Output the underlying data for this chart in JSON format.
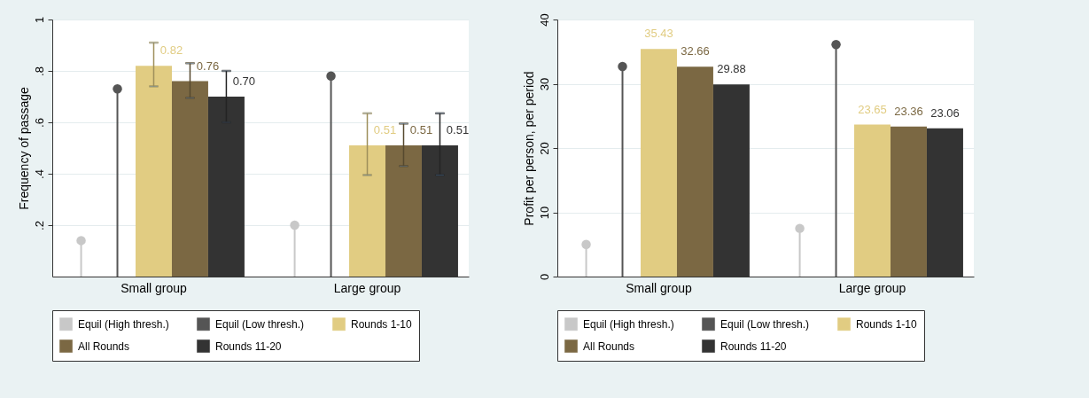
{
  "chart_data": [
    {
      "type": "bar",
      "categories": [
        "Small group",
        "Large group"
      ],
      "ylabel": "Frequency of passage",
      "ylim": [
        0,
        1
      ],
      "yticks": [
        {
          "value": 0.2,
          "label": ".2"
        },
        {
          "value": 0.4,
          "label": ".4"
        },
        {
          "value": 0.6,
          "label": ".6"
        },
        {
          "value": 0.8,
          "label": ".8"
        },
        1
      ],
      "grid": "y",
      "legend": "bottom",
      "series": [
        {
          "name": "Equil (High thresh.)",
          "type": "lollipop",
          "color": "#c8c8c8",
          "values": [
            0.14,
            0.2
          ]
        },
        {
          "name": "Equil (Low thresh.)",
          "type": "lollipop",
          "color": "#555555",
          "values": [
            0.73,
            0.78
          ]
        },
        {
          "name": "Rounds 1-10",
          "color": "#e1cc82",
          "values": [
            0.82,
            0.51
          ],
          "value_labels": [
            "0.82",
            "0.51"
          ],
          "errors": [
            [
              0.74,
              0.91
            ],
            [
              0.395,
              0.635
            ]
          ]
        },
        {
          "name": "All Rounds",
          "color": "#7b6843",
          "values": [
            0.76,
            0.51
          ],
          "value_labels": [
            "0.76",
            "0.51"
          ],
          "errors": [
            [
              0.695,
              0.83
            ],
            [
              0.43,
              0.595
            ]
          ]
        },
        {
          "name": "Rounds 11-20",
          "color": "#333333",
          "values": [
            0.7,
            0.51
          ],
          "value_labels": [
            "0.70",
            "0.51"
          ],
          "errors": [
            [
              0.6,
              0.8
            ],
            [
              0.395,
              0.635
            ]
          ]
        }
      ]
    },
    {
      "type": "bar",
      "categories": [
        "Small group",
        "Large group"
      ],
      "ylabel": "Profit per person, per period",
      "ylim": [
        0,
        40
      ],
      "yticks": [
        0,
        10,
        20,
        30,
        40
      ],
      "grid": "y",
      "legend": "bottom",
      "series": [
        {
          "name": "Equil (High thresh.)",
          "type": "lollipop",
          "color": "#c8c8c8",
          "values": [
            5,
            7.5
          ]
        },
        {
          "name": "Equil (Low thresh.)",
          "type": "lollipop",
          "color": "#555555",
          "values": [
            32.7,
            36.1
          ]
        },
        {
          "name": "Rounds 1-10",
          "color": "#e1cc82",
          "values": [
            35.43,
            23.65
          ],
          "value_labels": [
            "35.43",
            "23.65"
          ]
        },
        {
          "name": "All Rounds",
          "color": "#7b6843",
          "values": [
            32.66,
            23.36
          ],
          "value_labels": [
            "32.66",
            "23.36"
          ]
        },
        {
          "name": "Rounds 11-20",
          "color": "#333333",
          "values": [
            29.88,
            23.06
          ],
          "value_labels": [
            "29.88",
            "23.06"
          ]
        }
      ]
    }
  ]
}
